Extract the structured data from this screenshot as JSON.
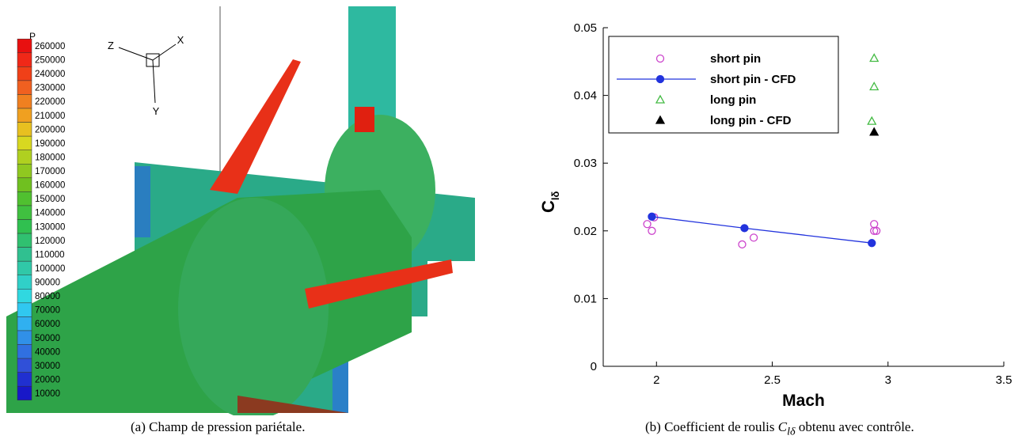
{
  "panel_a": {
    "colorbar": {
      "title": "P",
      "levels": [
        260000,
        250000,
        240000,
        230000,
        220000,
        210000,
        200000,
        190000,
        180000,
        170000,
        160000,
        150000,
        140000,
        130000,
        120000,
        110000,
        100000,
        90000,
        80000,
        70000,
        60000,
        50000,
        40000,
        30000,
        20000,
        10000
      ],
      "colors": [
        "#e81010",
        "#f02818",
        "#f04018",
        "#f06020",
        "#f08020",
        "#f0a020",
        "#e8c020",
        "#d8d820",
        "#b0d020",
        "#90c820",
        "#70c020",
        "#50c030",
        "#40c040",
        "#30c050",
        "#30c070",
        "#30c090",
        "#30c8a8",
        "#30d0c8",
        "#30d8e0",
        "#30c8f0",
        "#30b0f0",
        "#3090e8",
        "#3070e0",
        "#3050d8",
        "#2030d0",
        "#1818c8"
      ]
    },
    "axes": {
      "z": "Z",
      "x": "X",
      "y": "Y"
    },
    "caption": "(a) Champ de pression pariétale."
  },
  "caption_b": {
    "prefix": "(b) Coefficient de roulis ",
    "symbol": "C",
    "sub": "lδ",
    "suffix": " obtenu avec contrôle."
  },
  "chart_data": {
    "type": "scatter",
    "xlabel": "Mach",
    "ylabel": "C",
    "ylabel_sub": "lδ",
    "xlim": [
      1.77,
      3.5
    ],
    "xticks": [
      2,
      2.5,
      3,
      3.5
    ],
    "ylim": [
      0,
      0.05
    ],
    "yticks": [
      0,
      0.01,
      0.02,
      0.03,
      0.04,
      0.05
    ],
    "legend": "upper left",
    "series": [
      {
        "name": "short pin",
        "color": "#cc44cc",
        "marker": "circle-open",
        "line": false,
        "x": [
          1.96,
          1.98,
          1.99,
          2.37,
          2.42,
          2.94,
          2.94,
          2.95
        ],
        "values": [
          0.021,
          0.02,
          0.022,
          0.018,
          0.019,
          0.021,
          0.02,
          0.02
        ]
      },
      {
        "name": "short pin - CFD",
        "color": "#2233dd",
        "marker": "circle",
        "line": true,
        "x": [
          1.98,
          2.38,
          2.93
        ],
        "values": [
          0.0221,
          0.0204,
          0.0182
        ]
      },
      {
        "name": "long pin",
        "color": "#44bb44",
        "marker": "triangle-open",
        "line": false,
        "x": [
          2.94,
          2.94,
          2.93
        ],
        "values": [
          0.0455,
          0.0413,
          0.0362
        ]
      },
      {
        "name": "long pin - CFD",
        "color": "#000000",
        "marker": "triangle",
        "line": false,
        "x": [
          2.94
        ],
        "values": [
          0.0346
        ]
      }
    ]
  }
}
